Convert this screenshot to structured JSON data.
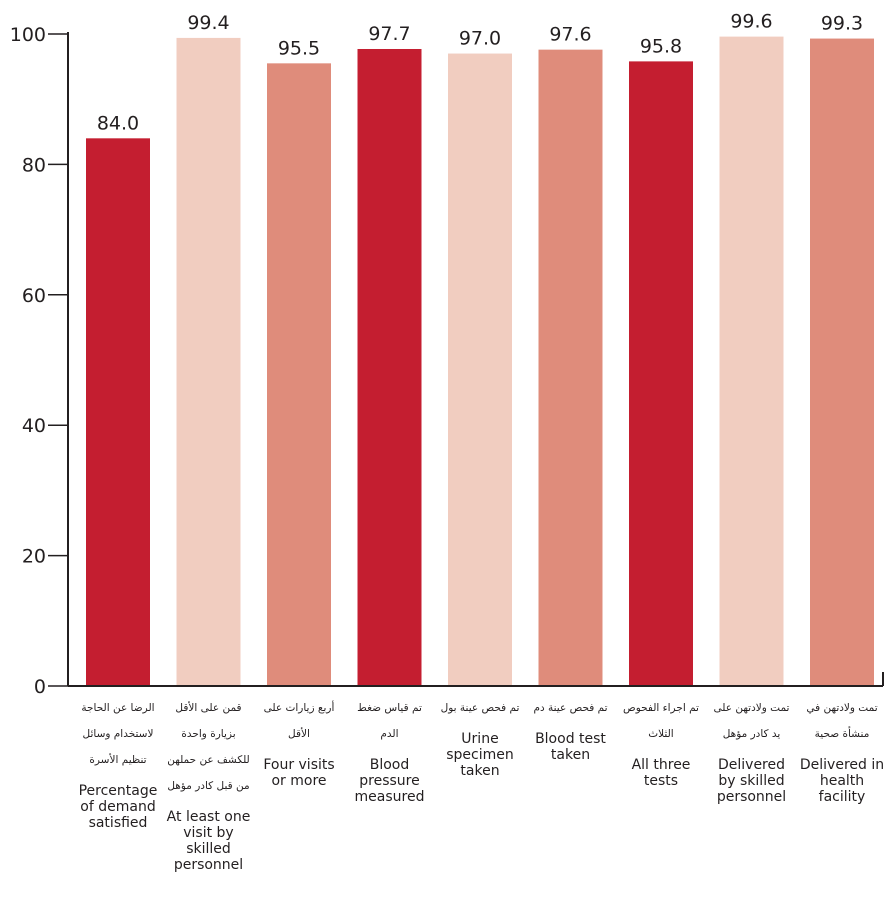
{
  "chart_data": {
    "type": "bar",
    "title": "",
    "xlabel": "",
    "ylabel": "",
    "ylim": [
      0,
      100
    ],
    "yticks": [
      0,
      20,
      40,
      60,
      80,
      100
    ],
    "grid": false,
    "legend": "none",
    "categories": [
      {
        "ar": "الرضا عن الحاجة لاستخدام وسائل تنظيم الأسرة",
        "en": "Percentage of demand satisfied"
      },
      {
        "ar": "قمن على الأقل بزيارة واحدة للكشف عن حملهن من قبل كادر مؤهل",
        "en": "At least one visit by skilled personnel"
      },
      {
        "ar": "أربع زيارات على الأقل",
        "en": "Four visits or more"
      },
      {
        "ar": "تم قياس ضغط الدم",
        "en": "Blood pressure measured"
      },
      {
        "ar": "تم فحص عينة بول",
        "en": "Urine specimen taken"
      },
      {
        "ar": "تم فحص عينة دم",
        "en": "Blood test taken"
      },
      {
        "ar": "تم اجراء الفحوص الثلاث",
        "en": "All three tests"
      },
      {
        "ar": "تمت ولادتهن على يد كادر مؤهل",
        "en": "Delivered by skilled personnel"
      },
      {
        "ar": "تمت ولادتهن في منشأة صحية",
        "en": "Delivered in health facility"
      }
    ],
    "values": [
      84.0,
      99.4,
      95.5,
      97.7,
      97.0,
      97.6,
      95.8,
      99.6,
      99.3
    ],
    "value_labels": [
      "84.0",
      "99.4",
      "95.5",
      "97.7",
      "97.0",
      "97.6",
      "95.8",
      "99.6",
      "99.3"
    ],
    "bar_colors": [
      "#c41e30",
      "#f1cdc0",
      "#df8c7b",
      "#c41e30",
      "#f1cdc0",
      "#df8c7b",
      "#c41e30",
      "#f1cdc0",
      "#df8c7b"
    ],
    "axis_color": "#231f20"
  }
}
